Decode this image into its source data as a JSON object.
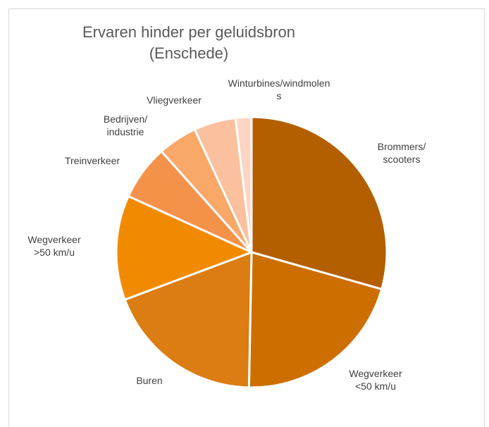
{
  "chart_data": {
    "type": "pie",
    "title": "Ervaren hinder per geluidsbron\n(Enschede)",
    "categories": [
      "Brommers/\nscooters",
      "Wegverkeer\n<50 km/u",
      "Buren",
      "Wegverkeer\n>50 km/u",
      "Treinverkeer",
      "Bedrijven/\nindustrie",
      "Vliegverkeer",
      "Winturbines/windmolen\ns"
    ],
    "values": [
      29.4,
      20.9,
      19,
      12.5,
      6.6,
      4.7,
      5,
      1.9
    ],
    "colors": [
      "#b35f00",
      "#cc6f00",
      "#db7d12",
      "#f28a00",
      "#f5924a",
      "#f9a868",
      "#fbc09e",
      "#fdd5c4"
    ]
  }
}
